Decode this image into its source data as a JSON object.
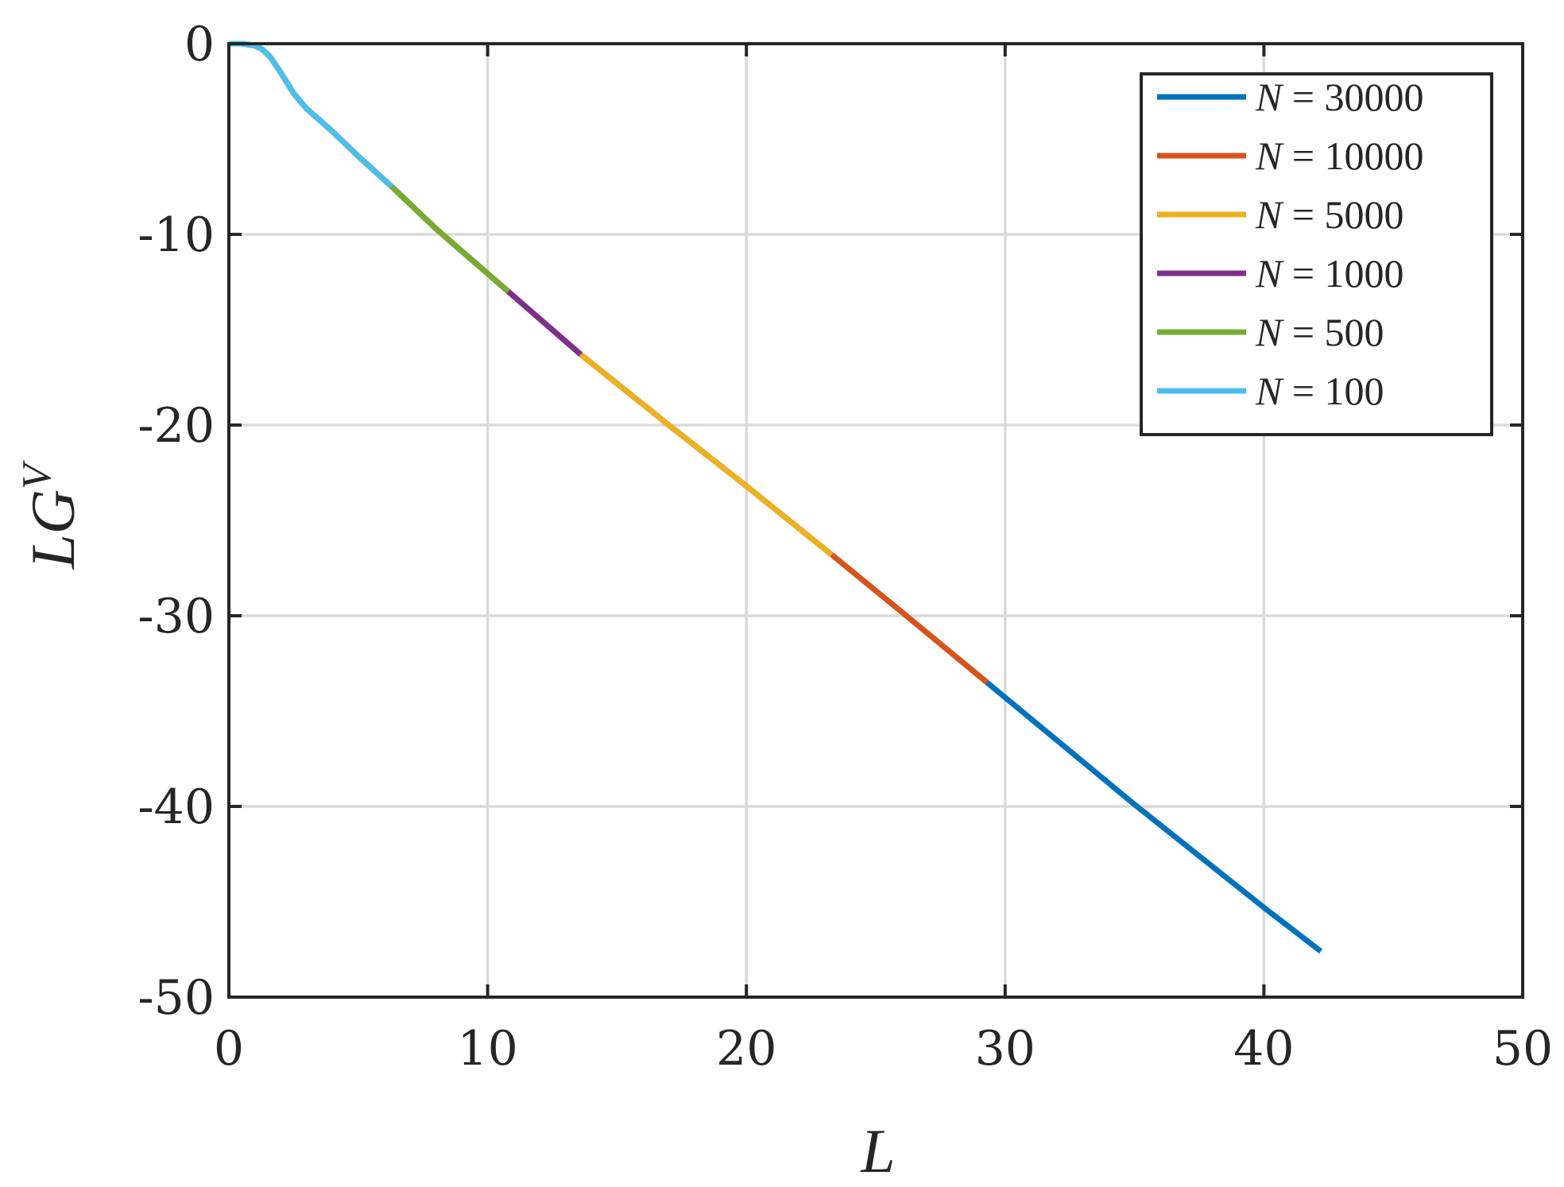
{
  "chart_data": {
    "type": "line",
    "title": "",
    "xlabel": "L",
    "ylabel": "LG",
    "ylabel_superscript": "V",
    "xlim": [
      0,
      50
    ],
    "ylim": [
      -50,
      0
    ],
    "xticks": [
      0,
      10,
      20,
      30,
      40,
      50
    ],
    "yticks": [
      0,
      -10,
      -20,
      -30,
      -40,
      -50
    ],
    "xtick_labels": [
      "0",
      "10",
      "20",
      "30",
      "40",
      "50"
    ],
    "ytick_labels": [
      "0",
      "-10",
      "-20",
      "-30",
      "-40",
      "-50"
    ],
    "grid": true,
    "legend_position": "top-right",
    "series": [
      {
        "name": "N = 30000",
        "name_var": "N",
        "name_value": "= 30000",
        "color": "#0072BD",
        "x_range": [
          0,
          42.2
        ]
      },
      {
        "name": "N = 10000",
        "name_var": "N",
        "name_value": "= 10000",
        "color": "#D95319",
        "x_range": [
          0,
          29.3
        ]
      },
      {
        "name": "N = 5000",
        "name_var": "N",
        "name_value": "= 5000",
        "color": "#EDB120",
        "x_range": [
          0,
          23.3
        ]
      },
      {
        "name": "N = 1000",
        "name_var": "N",
        "name_value": "= 1000",
        "color": "#7E2F8E",
        "x_range": [
          0,
          13.6
        ]
      },
      {
        "name": "N = 500",
        "name_var": "N",
        "name_value": "= 500",
        "color": "#77AC30",
        "x_range": [
          0,
          10.8
        ]
      },
      {
        "name": "N = 100",
        "name_var": "N",
        "name_value": "= 100",
        "color": "#4DBEEE",
        "x_range": [
          0,
          6.3
        ]
      }
    ],
    "curve": {
      "x": [
        0,
        0.5,
        1.0,
        1.3,
        1.6,
        2.0,
        2.5,
        3.0,
        3.5,
        4.0,
        5.0,
        6.3,
        8.0,
        10.8,
        13.6,
        17.0,
        20.0,
        23.3,
        26.0,
        29.3,
        35.0,
        40.0,
        42.2
      ],
      "y": [
        0,
        0,
        -0.1,
        -0.3,
        -0.7,
        -1.5,
        -2.6,
        -3.4,
        -4.0,
        -4.6,
        -5.9,
        -7.5,
        -9.7,
        -13.0,
        -16.3,
        -20.0,
        -23.2,
        -26.8,
        -29.8,
        -33.5,
        -39.9,
        -45.3,
        -47.6
      ]
    }
  }
}
